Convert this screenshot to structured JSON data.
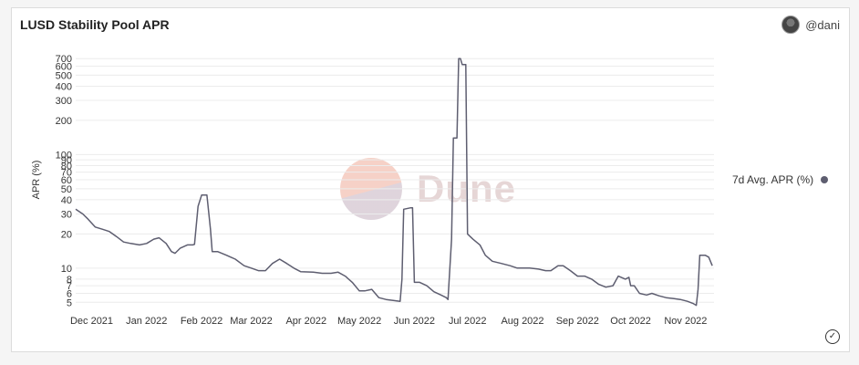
{
  "header": {
    "title": "LUSD Stability Pool APR",
    "author": "@dani"
  },
  "watermark": {
    "text": "Dune"
  },
  "chart_data": {
    "type": "line",
    "ylabel": "APR (%)",
    "xlabel": "",
    "yscale": "log",
    "ylim": [
      4.5,
      800
    ],
    "xlim": [
      "2021-11-22",
      "2022-11-17"
    ],
    "grid": true,
    "legend_position": "right",
    "y_ticks": [
      {
        "value": 5,
        "label": "5"
      },
      {
        "value": 6,
        "label": "6"
      },
      {
        "value": 7,
        "label": "7"
      },
      {
        "value": 8,
        "label": "8"
      },
      {
        "value": 10,
        "label": "10"
      },
      {
        "value": 20,
        "label": "20"
      },
      {
        "value": 30,
        "label": "30"
      },
      {
        "value": 40,
        "label": "40"
      },
      {
        "value": 50,
        "label": "50"
      },
      {
        "value": 60,
        "label": "60"
      },
      {
        "value": 70,
        "label": "70"
      },
      {
        "value": 80,
        "label": "80"
      },
      {
        "value": 90,
        "label": "90"
      },
      {
        "value": 100,
        "label": "100"
      },
      {
        "value": 200,
        "label": "200"
      },
      {
        "value": 300,
        "label": "300"
      },
      {
        "value": 400,
        "label": "400"
      },
      {
        "value": 500,
        "label": "500"
      },
      {
        "value": 600,
        "label": "600"
      },
      {
        "value": 700,
        "label": "700"
      }
    ],
    "x_ticks": [
      {
        "date": "2021-12-01",
        "label": "Dec 2021"
      },
      {
        "date": "2022-01-01",
        "label": "Jan 2022"
      },
      {
        "date": "2022-02-01",
        "label": "Feb 2022"
      },
      {
        "date": "2022-03-01",
        "label": "Mar 2022"
      },
      {
        "date": "2022-04-01",
        "label": "Apr 2022"
      },
      {
        "date": "2022-05-01",
        "label": "May 2022"
      },
      {
        "date": "2022-06-01",
        "label": "Jun 2022"
      },
      {
        "date": "2022-07-01",
        "label": "Jul 2022"
      },
      {
        "date": "2022-08-01",
        "label": "Aug 2022"
      },
      {
        "date": "2022-09-01",
        "label": "Sep 2022"
      },
      {
        "date": "2022-10-01",
        "label": "Oct 2022"
      },
      {
        "date": "2022-11-01",
        "label": "Nov 2022"
      }
    ],
    "series": [
      {
        "name": "7d Avg. APR (%)",
        "color": "#5e5e70",
        "points": [
          [
            "2021-11-22",
            33
          ],
          [
            "2021-11-26",
            30
          ],
          [
            "2021-11-29",
            27
          ],
          [
            "2021-12-03",
            23
          ],
          [
            "2021-12-07",
            22
          ],
          [
            "2021-12-11",
            21
          ],
          [
            "2021-12-15",
            19
          ],
          [
            "2021-12-19",
            17
          ],
          [
            "2021-12-23",
            16.5
          ],
          [
            "2021-12-28",
            16
          ],
          [
            "2022-01-01",
            16.5
          ],
          [
            "2022-01-05",
            18
          ],
          [
            "2022-01-08",
            18.5
          ],
          [
            "2022-01-12",
            16.5
          ],
          [
            "2022-01-15",
            14
          ],
          [
            "2022-01-17",
            13.5
          ],
          [
            "2022-01-20",
            15
          ],
          [
            "2022-01-24",
            16
          ],
          [
            "2022-01-27",
            16
          ],
          [
            "2022-01-28",
            16.2
          ],
          [
            "2022-01-30",
            35
          ],
          [
            "2022-02-01",
            44
          ],
          [
            "2022-02-04",
            44
          ],
          [
            "2022-02-06",
            22
          ],
          [
            "2022-02-07",
            14
          ],
          [
            "2022-02-10",
            14
          ],
          [
            "2022-02-15",
            13
          ],
          [
            "2022-02-20",
            12
          ],
          [
            "2022-02-25",
            10.5
          ],
          [
            "2022-03-01",
            10
          ],
          [
            "2022-03-05",
            9.5
          ],
          [
            "2022-03-09",
            9.5
          ],
          [
            "2022-03-13",
            11
          ],
          [
            "2022-03-17",
            12
          ],
          [
            "2022-03-21",
            11
          ],
          [
            "2022-03-25",
            10
          ],
          [
            "2022-03-29",
            9.3
          ],
          [
            "2022-04-05",
            9.2
          ],
          [
            "2022-04-10",
            9
          ],
          [
            "2022-04-15",
            9
          ],
          [
            "2022-04-19",
            9.2
          ],
          [
            "2022-04-23",
            8.5
          ],
          [
            "2022-04-27",
            7.5
          ],
          [
            "2022-05-01",
            6.3
          ],
          [
            "2022-05-04",
            6.3
          ],
          [
            "2022-05-08",
            6.5
          ],
          [
            "2022-05-12",
            5.5
          ],
          [
            "2022-05-16",
            5.3
          ],
          [
            "2022-05-20",
            5.2
          ],
          [
            "2022-05-24",
            5.1
          ],
          [
            "2022-05-25",
            8
          ],
          [
            "2022-05-26",
            33
          ],
          [
            "2022-05-30",
            34
          ],
          [
            "2022-05-31",
            34
          ],
          [
            "2022-06-01",
            7.5
          ],
          [
            "2022-06-04",
            7.5
          ],
          [
            "2022-06-08",
            7
          ],
          [
            "2022-06-12",
            6.2
          ],
          [
            "2022-06-16",
            5.8
          ],
          [
            "2022-06-19",
            5.5
          ],
          [
            "2022-06-20",
            5.3
          ],
          [
            "2022-06-22",
            18
          ],
          [
            "2022-06-23",
            140
          ],
          [
            "2022-06-25",
            140
          ],
          [
            "2022-06-26",
            700
          ],
          [
            "2022-06-27",
            700
          ],
          [
            "2022-06-28",
            620
          ],
          [
            "2022-06-30",
            620
          ],
          [
            "2022-07-01",
            20
          ],
          [
            "2022-07-04",
            18
          ],
          [
            "2022-07-08",
            16
          ],
          [
            "2022-07-11",
            13
          ],
          [
            "2022-07-15",
            11.5
          ],
          [
            "2022-07-20",
            11
          ],
          [
            "2022-07-25",
            10.5
          ],
          [
            "2022-07-29",
            10
          ],
          [
            "2022-08-05",
            10
          ],
          [
            "2022-08-10",
            9.8
          ],
          [
            "2022-08-14",
            9.5
          ],
          [
            "2022-08-17",
            9.5
          ],
          [
            "2022-08-21",
            10.5
          ],
          [
            "2022-08-24",
            10.5
          ],
          [
            "2022-08-28",
            9.5
          ],
          [
            "2022-09-01",
            8.5
          ],
          [
            "2022-09-05",
            8.5
          ],
          [
            "2022-09-09",
            8
          ],
          [
            "2022-09-13",
            7.2
          ],
          [
            "2022-09-17",
            6.8
          ],
          [
            "2022-09-21",
            7
          ],
          [
            "2022-09-24",
            8.5
          ],
          [
            "2022-09-28",
            8
          ],
          [
            "2022-09-30",
            8.3
          ],
          [
            "2022-10-01",
            7
          ],
          [
            "2022-10-03",
            7
          ],
          [
            "2022-10-06",
            6
          ],
          [
            "2022-10-10",
            5.8
          ],
          [
            "2022-10-13",
            6
          ],
          [
            "2022-10-17",
            5.7
          ],
          [
            "2022-10-21",
            5.5
          ],
          [
            "2022-10-25",
            5.4
          ],
          [
            "2022-10-29",
            5.3
          ],
          [
            "2022-11-02",
            5.1
          ],
          [
            "2022-11-05",
            4.9
          ],
          [
            "2022-11-07",
            4.7
          ],
          [
            "2022-11-08",
            6.5
          ],
          [
            "2022-11-09",
            13
          ],
          [
            "2022-11-12",
            13
          ],
          [
            "2022-11-14",
            12.5
          ],
          [
            "2022-11-16",
            10.5
          ]
        ]
      }
    ]
  }
}
